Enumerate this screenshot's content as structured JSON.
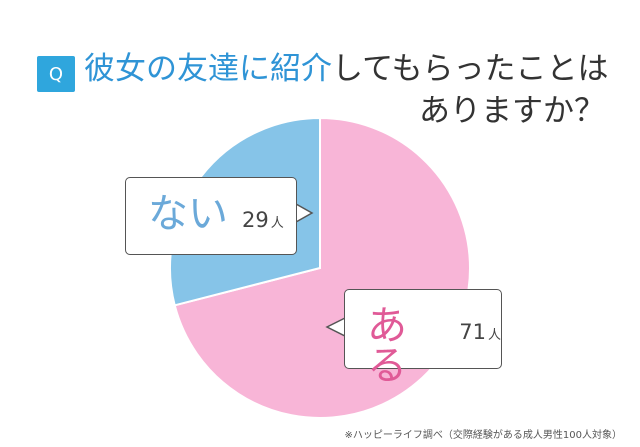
{
  "header": {
    "badge": "Q",
    "title_highlight": "彼女の友達に紹介",
    "title_rest": "してもらったことは",
    "title_line2": "ありますか？"
  },
  "chart_data": {
    "type": "pie",
    "categories": [
      "ない",
      "ある"
    ],
    "values": [
      29,
      71
    ],
    "unit": "人",
    "colors": [
      "#86c4e8",
      "#f8b5d7"
    ],
    "label_colors": [
      "#6ba9d9",
      "#e05a97"
    ],
    "start": "12 o'clock, clockwise: ある then ない",
    "labels": {
      "nai": {
        "text": "ない",
        "value": "29",
        "unit": "人"
      },
      "aru": {
        "text": "ある",
        "value": "71",
        "unit": "人"
      }
    }
  },
  "footer": {
    "note": "※ハッピーライフ調べ（交際経験がある成人男性100人対象）"
  }
}
